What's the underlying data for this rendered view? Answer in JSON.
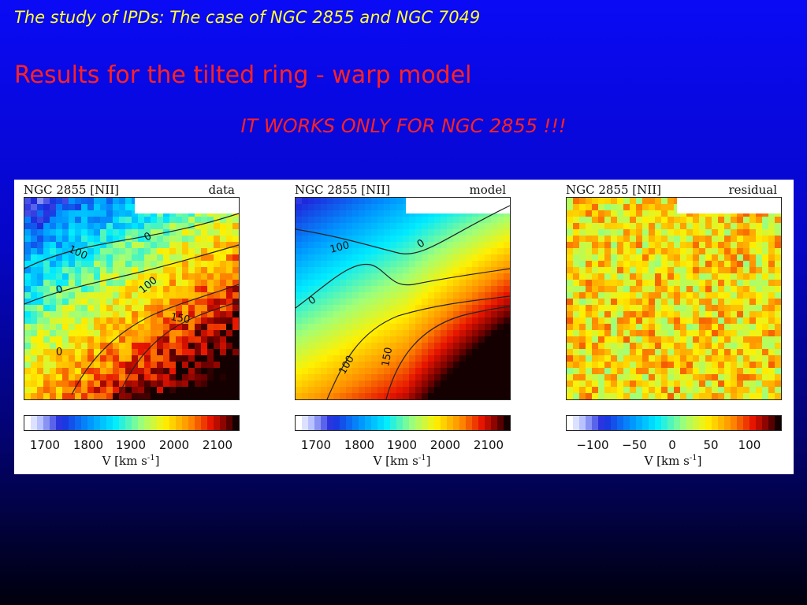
{
  "slide": {
    "title": "The study of IPDs: The case of NGC 2855 and NGC 7049",
    "subtitle": "Results for the tilted ring - warp model",
    "highlight": "IT WORKS ONLY FOR NGC 2855 !!!"
  },
  "panels": [
    {
      "object_label": "NGC 2855 [NII]",
      "type_label": "data",
      "contour_labels": [
        "100",
        "0",
        "0",
        "100",
        "150",
        "0"
      ],
      "colorbar_ticks": [
        "1700",
        "1800",
        "1900",
        "2000",
        "2100"
      ],
      "colorbar_units": "V [km s",
      "colorbar_units_sup": "-1",
      "colorbar_units_end": "]"
    },
    {
      "object_label": "NGC 2855 [NII]",
      "type_label": "model",
      "contour_labels": [
        "100",
        "0",
        "0",
        "100",
        "150"
      ],
      "colorbar_ticks": [
        "1700",
        "1800",
        "1900",
        "2000",
        "2100"
      ],
      "colorbar_units": "V [km s",
      "colorbar_units_sup": "-1",
      "colorbar_units_end": "]"
    },
    {
      "object_label": "NGC 2855 [NII]",
      "type_label": "residual",
      "contour_labels": [],
      "colorbar_ticks": [
        "−100",
        "−50",
        "0",
        "50",
        "100"
      ],
      "colorbar_units": "V [km s",
      "colorbar_units_sup": "-1",
      "colorbar_units_end": "]"
    }
  ]
}
